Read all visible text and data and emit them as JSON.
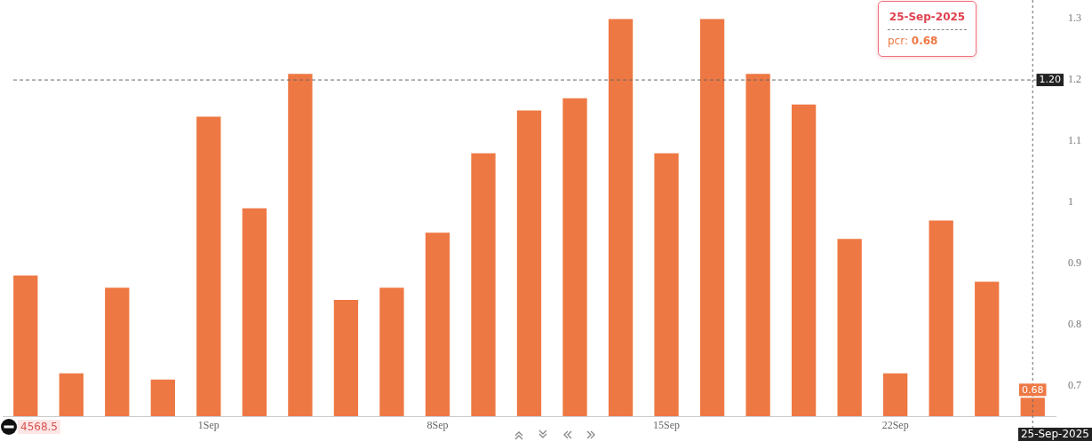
{
  "chart_data": {
    "type": "bar",
    "categories": [
      null,
      null,
      null,
      null,
      "1Sep",
      null,
      null,
      null,
      null,
      "8Sep",
      null,
      null,
      null,
      null,
      "15Sep",
      null,
      null,
      null,
      null,
      "22Sep",
      null,
      null,
      null
    ],
    "series": [
      {
        "name": "pcr:",
        "color": "#ee7843",
        "values": [
          0.88,
          0.72,
          0.86,
          0.71,
          1.14,
          0.99,
          1.21,
          0.84,
          0.86,
          0.95,
          1.08,
          1.15,
          1.17,
          1.3,
          1.08,
          1.3,
          1.21,
          1.16,
          0.94,
          0.72,
          0.97,
          0.87,
          0.68
        ],
        "value_labels": [
          null,
          null,
          null,
          null,
          null,
          null,
          null,
          null,
          null,
          null,
          null,
          null,
          null,
          null,
          null,
          null,
          null,
          null,
          null,
          null,
          null,
          null,
          "0.68"
        ]
      }
    ],
    "ylim": [
      0.65,
      1.3
    ],
    "yticks": [
      0.7,
      0.8,
      0.9,
      1,
      1.1,
      1.2,
      1.3
    ],
    "ref_lines": [
      {
        "axis": "y",
        "value": 1.2,
        "label": "1.20",
        "line_style": "dashed",
        "color": "#666666"
      }
    ],
    "annotations": [
      "4568.5",
      "25-Sep-2025",
      "25-Sep-2025"
    ]
  }
}
